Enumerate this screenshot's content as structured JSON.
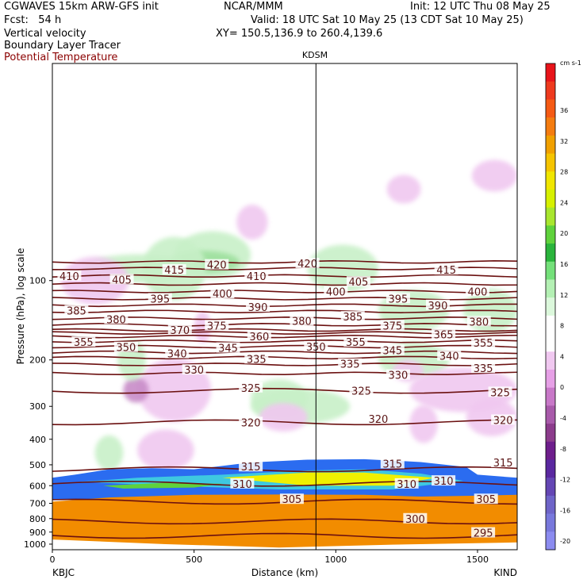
{
  "header": {
    "model": "CGWAVES 15km ARW-GFS init",
    "org": "NCAR/MMM",
    "init": "Init: 12 UTC Thu 08 May 25",
    "fcst": "Fcst:   54 h",
    "valid": "Valid: 18 UTC Sat 10 May 25 (13 CDT Sat 10 May 25)",
    "xy": "XY= 150.5,136.9 to 260.4,139.6",
    "field1": "Vertical velocity",
    "field2": "Boundary Layer Tracer",
    "field3": "Potential Temperature"
  },
  "colors": {
    "theta_contour": "#6b1010",
    "pbl_tracer": "#f28c00",
    "field3_text": "#8b0000"
  },
  "chart_data": {
    "type": "cross-section",
    "station_top": "KDSM",
    "station_left": "KBJC",
    "station_right": "KIND",
    "xlabel": "Distance (km)",
    "ylabel": "Pressure (hPa), log scale",
    "x_ticks": [
      "0",
      "500",
      "1000",
      "1500"
    ],
    "xlim": [
      0,
      1640
    ],
    "y_ticks": [
      "100",
      "200",
      "300",
      "400",
      "500",
      "600",
      "700",
      "800",
      "900",
      "1000"
    ],
    "ylim": [
      1050,
      15
    ],
    "y_scale": "log",
    "vertical_line_km": 930,
    "colorbar": {
      "units": "cm s-1",
      "ticks": [
        "36",
        "32",
        "28",
        "24",
        "20",
        "16",
        "12",
        "8",
        "4",
        "0",
        "-4",
        "-8",
        "-12",
        "-16",
        "-20"
      ],
      "colors": [
        "#e8141a",
        "#ee3a1e",
        "#f55a14",
        "#f47c10",
        "#f0a000",
        "#f5c400",
        "#f0e600",
        "#d6f000",
        "#a8e62e",
        "#5fd23c",
        "#2ab43c",
        "#74e07a",
        "#b4f0b4",
        "#dcf8dc",
        "#ffffff",
        "#ffffff",
        "#f0c8f0",
        "#e6a0e6",
        "#c878c8",
        "#a85aaa",
        "#8c3c8c",
        "#6e1e8c",
        "#5a28a0",
        "#6446b4",
        "#6e64c8",
        "#7878dc",
        "#8c8cf0"
      ]
    },
    "theta_contours": [
      {
        "label": "420",
        "p": 85
      },
      {
        "label": "415",
        "p": 90
      },
      {
        "label": "410",
        "p": 96
      },
      {
        "label": "405",
        "p": 103
      },
      {
        "label": "400",
        "p": 110
      },
      {
        "label": "395",
        "p": 117
      },
      {
        "label": "390",
        "p": 124
      },
      {
        "label": "385",
        "p": 131
      },
      {
        "label": "380",
        "p": 139
      },
      {
        "label": "375",
        "p": 147
      },
      {
        "label": "370",
        "p": 154
      },
      {
        "label": "365",
        "p": 158
      },
      {
        "label": "360",
        "p": 163
      },
      {
        "label": "355",
        "p": 170
      },
      {
        "label": "350",
        "p": 178
      },
      {
        "label": "345",
        "p": 187
      },
      {
        "label": "340",
        "p": 196
      },
      {
        "label": "335",
        "p": 208
      },
      {
        "label": "330",
        "p": 225
      },
      {
        "label": "325",
        "p": 262
      },
      {
        "label": "320",
        "p": 345
      },
      {
        "label": "315",
        "p": 520
      },
      {
        "label": "310",
        "p": 590
      },
      {
        "label": "305",
        "p": 690
      },
      {
        "label": "300",
        "p": 820
      },
      {
        "label": "295",
        "p": 930
      }
    ],
    "contour_labels": [
      {
        "t": "420",
        "x": 580,
        "p": 87
      },
      {
        "t": "415",
        "x": 430,
        "p": 91
      },
      {
        "t": "420",
        "x": 900,
        "p": 86
      },
      {
        "t": "415",
        "x": 1390,
        "p": 91
      },
      {
        "t": "410",
        "x": 60,
        "p": 96
      },
      {
        "t": "405",
        "x": 245,
        "p": 99
      },
      {
        "t": "410",
        "x": 720,
        "p": 96
      },
      {
        "t": "405",
        "x": 1080,
        "p": 101
      },
      {
        "t": "395",
        "x": 380,
        "p": 117
      },
      {
        "t": "400",
        "x": 600,
        "p": 112
      },
      {
        "t": "400",
        "x": 1000,
        "p": 110
      },
      {
        "t": "395",
        "x": 1220,
        "p": 117
      },
      {
        "t": "400",
        "x": 1500,
        "p": 110
      },
      {
        "t": "385",
        "x": 85,
        "p": 130
      },
      {
        "t": "380",
        "x": 225,
        "p": 140
      },
      {
        "t": "390",
        "x": 725,
        "p": 126
      },
      {
        "t": "380",
        "x": 880,
        "p": 142
      },
      {
        "t": "385",
        "x": 1060,
        "p": 137
      },
      {
        "t": "390",
        "x": 1360,
        "p": 124
      },
      {
        "t": "380",
        "x": 1505,
        "p": 143
      },
      {
        "t": "375",
        "x": 580,
        "p": 148
      },
      {
        "t": "370",
        "x": 450,
        "p": 154
      },
      {
        "t": "375",
        "x": 1200,
        "p": 148
      },
      {
        "t": "365",
        "x": 1380,
        "p": 160
      },
      {
        "t": "360",
        "x": 730,
        "p": 163
      },
      {
        "t": "355",
        "x": 110,
        "p": 171
      },
      {
        "t": "355",
        "x": 1070,
        "p": 171
      },
      {
        "t": "355",
        "x": 1520,
        "p": 172
      },
      {
        "t": "350",
        "x": 260,
        "p": 179
      },
      {
        "t": "350",
        "x": 930,
        "p": 178
      },
      {
        "t": "345",
        "x": 620,
        "p": 180
      },
      {
        "t": "345",
        "x": 1200,
        "p": 184
      },
      {
        "t": "340",
        "x": 440,
        "p": 189
      },
      {
        "t": "340",
        "x": 1400,
        "p": 193
      },
      {
        "t": "335",
        "x": 720,
        "p": 198
      },
      {
        "t": "335",
        "x": 1050,
        "p": 207
      },
      {
        "t": "335",
        "x": 1520,
        "p": 215
      },
      {
        "t": "330",
        "x": 500,
        "p": 218
      },
      {
        "t": "330",
        "x": 1220,
        "p": 228
      },
      {
        "t": "325",
        "x": 700,
        "p": 255
      },
      {
        "t": "325",
        "x": 1090,
        "p": 262
      },
      {
        "t": "325",
        "x": 1580,
        "p": 265
      },
      {
        "t": "320",
        "x": 700,
        "p": 345
      },
      {
        "t": "320",
        "x": 1150,
        "p": 335
      },
      {
        "t": "320",
        "x": 1590,
        "p": 338
      },
      {
        "t": "315",
        "x": 700,
        "p": 508
      },
      {
        "t": "315",
        "x": 1200,
        "p": 495
      },
      {
        "t": "315",
        "x": 1590,
        "p": 490
      },
      {
        "t": "310",
        "x": 670,
        "p": 590
      },
      {
        "t": "310",
        "x": 1250,
        "p": 590
      },
      {
        "t": "310",
        "x": 1380,
        "p": 575
      },
      {
        "t": "305",
        "x": 845,
        "p": 675
      },
      {
        "t": "305",
        "x": 1530,
        "p": 675
      },
      {
        "t": "300",
        "x": 1280,
        "p": 800
      },
      {
        "t": "295",
        "x": 1520,
        "p": 905
      }
    ]
  }
}
